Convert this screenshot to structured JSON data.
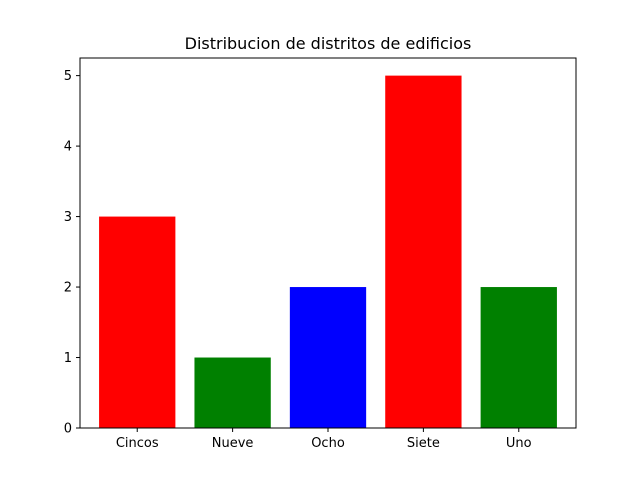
{
  "chart_data": {
    "type": "bar",
    "title": "Distribucion de distritos de edificios",
    "xlabel": "",
    "ylabel": "",
    "categories": [
      "Cincos",
      "Nueve",
      "Ocho",
      "Siete",
      "Uno"
    ],
    "values": [
      3,
      1,
      2,
      5,
      2
    ],
    "bar_colors": [
      "#ff0000",
      "#008000",
      "#0000ff",
      "#ff0000",
      "#008000"
    ],
    "ylim": [
      0,
      5.25
    ],
    "yticks": [
      0,
      1,
      2,
      3,
      4,
      5
    ],
    "grid": false,
    "legend": "none"
  }
}
